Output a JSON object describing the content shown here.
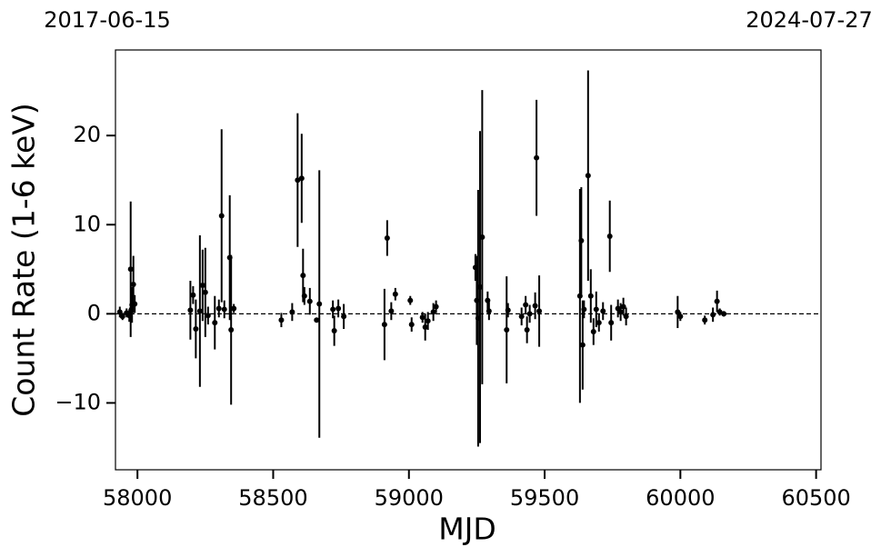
{
  "chart_data": {
    "type": "errorbar",
    "xlabel": "MJD",
    "ylabel": "Count Rate (1-6 keV)",
    "top_left_label": "2017-06-15",
    "top_right_label": "2024-07-27",
    "xlim": [
      57919,
      60518
    ],
    "ylim": [
      -17.5,
      29.6
    ],
    "xticks": [
      58000,
      58500,
      59000,
      59500,
      60000,
      60500
    ],
    "yticks": [
      {
        "value": -10,
        "label": "−10"
      },
      0,
      10,
      20
    ],
    "hline": 0,
    "series": [
      {
        "color": "#000000",
        "x": [
          57935,
          57945,
          57960,
          57970,
          57975,
          57978,
          57980,
          57985,
          57990,
          58195,
          58205,
          58215,
          58230,
          58240,
          58250,
          58260,
          58285,
          58300,
          58310,
          58320,
          58340,
          58345,
          58355,
          58530,
          58570,
          58590,
          58605,
          58610,
          58615,
          58635,
          58660,
          58670,
          58720,
          58725,
          58740,
          58760,
          58910,
          58920,
          58935,
          58950,
          59005,
          59010,
          59050,
          59060,
          59070,
          59090,
          59100,
          59245,
          59250,
          59255,
          59262,
          59270,
          59290,
          59295,
          59360,
          59365,
          59415,
          59430,
          59435,
          59445,
          59465,
          59470,
          59480,
          59630,
          59635,
          59640,
          59645,
          59660,
          59670,
          59680,
          59690,
          59700,
          59715,
          59740,
          59745,
          59770,
          59780,
          59790,
          59800,
          59990,
          60000,
          60090,
          60120,
          60135,
          60145,
          60160
        ],
        "values": [
          0.2,
          -0.3,
          0.1,
          -0.2,
          5.0,
          0.5,
          1.0,
          3.3,
          1.1,
          0.4,
          2.1,
          -1.7,
          0.3,
          3.2,
          2.4,
          -0.2,
          -1.0,
          0.6,
          11.0,
          0.5,
          6.3,
          -1.8,
          0.6,
          -0.7,
          0.2,
          15.0,
          15.2,
          4.3,
          2.0,
          1.4,
          -0.7,
          1.1,
          0.5,
          -1.9,
          0.6,
          -0.3,
          -1.2,
          8.5,
          0.3,
          2.2,
          1.5,
          -1.2,
          -0.4,
          -1.5,
          -0.8,
          0.2,
          0.8,
          5.2,
          1.5,
          -0.5,
          3.0,
          8.6,
          1.5,
          0.3,
          -1.8,
          0.4,
          -0.3,
          1.0,
          -1.8,
          0.0,
          0.9,
          17.5,
          0.3,
          2.0,
          8.2,
          -3.5,
          0.5,
          15.5,
          2.0,
          -2.0,
          0.5,
          -1.0,
          0.3,
          8.7,
          -1.0,
          0.6,
          0.2,
          0.8,
          -0.3,
          0.2,
          -0.3,
          -0.7,
          -0.1,
          1.4,
          0.2,
          0.0
        ],
        "errors": [
          0.6,
          0.4,
          0.5,
          0.7,
          7.6,
          1.0,
          2.0,
          3.2,
          1.0,
          3.3,
          1.0,
          3.3,
          8.5,
          4.0,
          5.0,
          1.0,
          3.0,
          1.0,
          9.7,
          1.0,
          7.0,
          8.4,
          0.5,
          0.8,
          1.0,
          7.5,
          5.0,
          3.0,
          1.0,
          1.5,
          0.0,
          15.0,
          1.0,
          1.7,
          1.0,
          1.4,
          4.0,
          2.0,
          1.0,
          0.7,
          0.5,
          0.8,
          0.6,
          1.5,
          1.0,
          1.0,
          0.7,
          1.5,
          5.0,
          14.4,
          17.5,
          16.5,
          1.0,
          1.0,
          6.0,
          0.8,
          1.0,
          1.0,
          1.5,
          1.0,
          1.5,
          6.5,
          4.0,
          12.0,
          6.0,
          5.0,
          1.0,
          11.8,
          3.0,
          1.5,
          2.0,
          1.0,
          1.0,
          4.0,
          2.0,
          1.0,
          1.0,
          1.0,
          1.0,
          1.8,
          0.5,
          0.5,
          0.8,
          1.2,
          0.4,
          0.3
        ]
      }
    ]
  }
}
